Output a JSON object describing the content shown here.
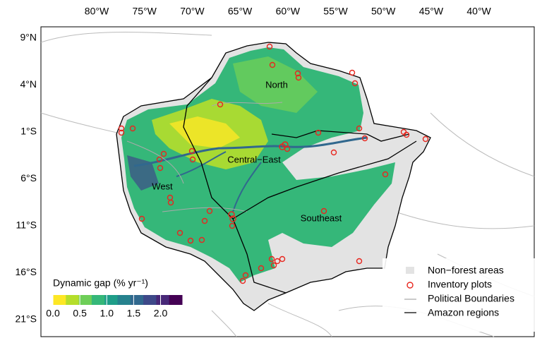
{
  "map": {
    "lon_labels": [
      "80°W",
      "75°W",
      "70°W",
      "65°W",
      "60°W",
      "55°W",
      "50°W",
      "45°W",
      "40°W"
    ],
    "lat_labels": [
      "9°N",
      "4°N",
      "1°S",
      "6°S",
      "11°S",
      "16°S",
      "21°S"
    ],
    "regions": [
      "North",
      "Central−East",
      "West",
      "Southeast"
    ],
    "colorbar": {
      "title": "Dynamic gap (% yr⁻¹)",
      "range": [
        0,
        2.4
      ],
      "ticks": [
        {
          "value": 0,
          "label": "0.0"
        },
        0.5,
        {
          "value": 1,
          "label": "1.0"
        },
        1.5,
        {
          "value": 2,
          "label": "2.0"
        }
      ],
      "colors": [
        "#fde725",
        "#b5de2b",
        "#6ece58",
        "#35b779",
        "#1f9e89",
        "#26828e",
        "#31688e",
        "#3e4989",
        "#482878",
        "#440154"
      ]
    },
    "legend": [
      "Non−forest areas",
      "Inventory plots",
      "Political Boundaries",
      "Amazon regions"
    ]
  }
}
